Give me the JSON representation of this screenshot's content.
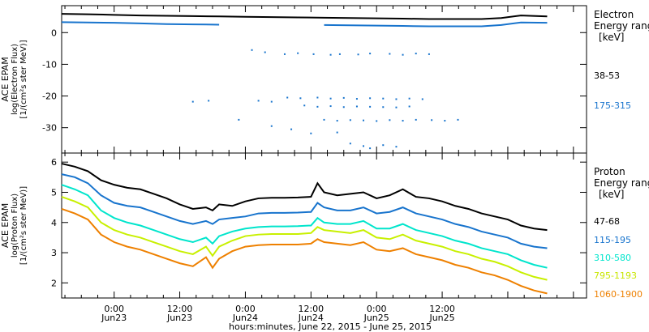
{
  "chart_data": [
    {
      "type": "scatter",
      "ylabel": [
        "ACE EPAM",
        "log(Electron Flux)",
        "[1/(cm²s ster MeV)]"
      ],
      "yticks": [
        0,
        -10,
        -20,
        -30
      ],
      "ylim": [
        -38,
        8.5
      ],
      "xlim": [
        -0.4,
        3.6
      ],
      "legend_title": [
        "Electron",
        "Energy range",
        "[keV]"
      ],
      "legend_placement": "right",
      "series": [
        {
          "name": "38-53",
          "color": "#000000",
          "x": [
            -0.4,
            -0.2,
            0.0,
            0.2,
            0.4,
            0.6,
            0.8,
            1.0,
            1.2,
            1.4,
            1.6,
            1.8,
            2.0,
            2.2,
            2.4,
            2.6,
            2.8,
            2.95,
            3.1,
            3.3
          ],
          "y": [
            5.9,
            5.8,
            5.6,
            5.4,
            5.3,
            5.2,
            5.1,
            5.0,
            4.9,
            4.8,
            4.7,
            4.6,
            4.5,
            4.4,
            4.3,
            4.3,
            4.3,
            4.6,
            5.4,
            5.1
          ]
        },
        {
          "name": "175-315",
          "color": "#1874cd",
          "x": [
            -0.4,
            -0.2,
            0.0,
            0.2,
            0.4,
            0.6,
            0.8,
            1.0,
            1.2,
            1.4,
            1.5,
            1.6,
            1.8,
            2.0,
            2.2,
            2.4,
            2.6,
            2.8,
            2.95,
            3.1,
            3.3
          ],
          "y": [
            3.3,
            3.2,
            3.1,
            2.9,
            2.7,
            2.6,
            2.5,
            2.4,
            2.4,
            2.4,
            2.4,
            2.4,
            2.3,
            2.2,
            2.1,
            2.0,
            2.0,
            2.0,
            2.4,
            3.2,
            3.1
          ],
          "gap": [
            0.94,
            1.54
          ],
          "scatter_points": [
            [
              1.05,
              -5.5
            ],
            [
              1.15,
              -6.2
            ],
            [
              1.3,
              -6.8
            ],
            [
              1.4,
              -6.5
            ],
            [
              1.52,
              -6.8
            ],
            [
              1.65,
              -7.0
            ],
            [
              1.72,
              -6.8
            ],
            [
              1.86,
              -6.9
            ],
            [
              1.95,
              -6.6
            ],
            [
              2.1,
              -6.7
            ],
            [
              2.2,
              -7.0
            ],
            [
              2.3,
              -6.6
            ],
            [
              2.4,
              -6.8
            ],
            [
              1.1,
              -21.5
            ],
            [
              1.2,
              -21.8
            ],
            [
              1.32,
              -20.5
            ],
            [
              1.42,
              -20.7
            ],
            [
              1.55,
              -20.5
            ],
            [
              1.65,
              -20.8
            ],
            [
              1.75,
              -20.6
            ],
            [
              1.85,
              -20.9
            ],
            [
              1.95,
              -20.7
            ],
            [
              2.05,
              -20.8
            ],
            [
              2.15,
              -21.0
            ],
            [
              2.25,
              -20.8
            ],
            [
              2.35,
              -21.0
            ],
            [
              1.45,
              -23.0
            ],
            [
              1.55,
              -23.4
            ],
            [
              1.65,
              -23.2
            ],
            [
              1.75,
              -23.5
            ],
            [
              1.85,
              -23.3
            ],
            [
              1.95,
              -23.4
            ],
            [
              2.05,
              -23.5
            ],
            [
              2.15,
              -23.6
            ],
            [
              2.25,
              -23.3
            ],
            [
              1.6,
              -27.5
            ],
            [
              1.7,
              -27.8
            ],
            [
              1.8,
              -27.6
            ],
            [
              1.9,
              -27.7
            ],
            [
              2.0,
              -27.9
            ],
            [
              2.1,
              -27.6
            ],
            [
              2.2,
              -27.8
            ],
            [
              2.3,
              -27.5
            ],
            [
              2.42,
              -27.6
            ],
            [
              2.52,
              -27.8
            ],
            [
              2.62,
              -27.5
            ],
            [
              1.2,
              -29.5
            ],
            [
              1.35,
              -30.5
            ],
            [
              1.5,
              -31.8
            ],
            [
              1.7,
              -31.5
            ],
            [
              1.8,
              -35.0
            ],
            [
              1.9,
              -35.8
            ],
            [
              1.95,
              -36.5
            ],
            [
              2.05,
              -35.5
            ],
            [
              2.15,
              -36.0
            ],
            [
              0.6,
              -21.8
            ],
            [
              0.72,
              -21.5
            ],
            [
              0.95,
              -27.5
            ]
          ]
        }
      ],
      "legend_entries": [
        {
          "label": "38-53",
          "color": "#000000"
        },
        {
          "label": "175-315",
          "color": "#1874cd"
        }
      ]
    },
    {
      "type": "line",
      "ylabel": [
        "ACE EPAM",
        "log(Proton Flux)",
        "[1/(cm²s ster MeV)]"
      ],
      "yticks": [
        2,
        3,
        4,
        5,
        6
      ],
      "ylim": [
        1.5,
        6.3
      ],
      "xlim": [
        -0.4,
        3.6
      ],
      "legend_title": [
        "Proton",
        "Energy range",
        "[keV]"
      ],
      "legend_placement": "right",
      "series": [
        {
          "name": "47-68",
          "color": "#000000",
          "x": [
            -0.4,
            -0.3,
            -0.2,
            -0.1,
            0.0,
            0.1,
            0.2,
            0.3,
            0.4,
            0.5,
            0.6,
            0.7,
            0.75,
            0.8,
            0.9,
            1.0,
            1.1,
            1.2,
            1.3,
            1.4,
            1.5,
            1.55,
            1.6,
            1.7,
            1.8,
            1.9,
            2.0,
            2.1,
            2.2,
            2.3,
            2.4,
            2.5,
            2.6,
            2.7,
            2.8,
            2.9,
            3.0,
            3.1,
            3.2,
            3.3
          ],
          "y": [
            5.95,
            5.85,
            5.7,
            5.4,
            5.25,
            5.15,
            5.1,
            4.95,
            4.8,
            4.6,
            4.45,
            4.5,
            4.4,
            4.6,
            4.55,
            4.7,
            4.8,
            4.82,
            4.82,
            4.83,
            4.85,
            5.3,
            5.0,
            4.9,
            4.95,
            5.0,
            4.8,
            4.9,
            5.1,
            4.85,
            4.8,
            4.7,
            4.55,
            4.45,
            4.3,
            4.2,
            4.1,
            3.9,
            3.8,
            3.75
          ]
        },
        {
          "name": "115-195",
          "color": "#1874cd",
          "x": [
            -0.4,
            -0.3,
            -0.2,
            -0.1,
            0.0,
            0.1,
            0.2,
            0.3,
            0.4,
            0.5,
            0.6,
            0.7,
            0.75,
            0.8,
            0.9,
            1.0,
            1.1,
            1.2,
            1.3,
            1.4,
            1.5,
            1.55,
            1.6,
            1.7,
            1.8,
            1.9,
            2.0,
            2.1,
            2.2,
            2.3,
            2.4,
            2.5,
            2.6,
            2.7,
            2.8,
            2.9,
            3.0,
            3.1,
            3.2,
            3.3
          ],
          "y": [
            5.6,
            5.5,
            5.3,
            4.9,
            4.65,
            4.55,
            4.5,
            4.35,
            4.2,
            4.05,
            3.95,
            4.05,
            3.95,
            4.1,
            4.15,
            4.2,
            4.3,
            4.32,
            4.32,
            4.33,
            4.35,
            4.65,
            4.5,
            4.4,
            4.4,
            4.5,
            4.3,
            4.35,
            4.5,
            4.3,
            4.2,
            4.1,
            3.95,
            3.85,
            3.7,
            3.6,
            3.5,
            3.3,
            3.2,
            3.15
          ]
        },
        {
          "name": "310-580",
          "color": "#00e5cc",
          "x": [
            -0.4,
            -0.3,
            -0.2,
            -0.1,
            0.0,
            0.1,
            0.2,
            0.3,
            0.4,
            0.5,
            0.6,
            0.7,
            0.75,
            0.8,
            0.9,
            1.0,
            1.1,
            1.2,
            1.3,
            1.4,
            1.5,
            1.55,
            1.6,
            1.7,
            1.8,
            1.9,
            2.0,
            2.1,
            2.2,
            2.3,
            2.4,
            2.5,
            2.6,
            2.7,
            2.8,
            2.9,
            3.0,
            3.1,
            3.2,
            3.3
          ],
          "y": [
            5.25,
            5.1,
            4.9,
            4.4,
            4.15,
            4.0,
            3.9,
            3.75,
            3.6,
            3.45,
            3.35,
            3.5,
            3.3,
            3.55,
            3.7,
            3.8,
            3.85,
            3.87,
            3.87,
            3.88,
            3.9,
            4.15,
            4.0,
            3.95,
            3.95,
            4.05,
            3.8,
            3.8,
            3.95,
            3.75,
            3.65,
            3.55,
            3.4,
            3.3,
            3.15,
            3.05,
            2.95,
            2.75,
            2.6,
            2.5
          ]
        },
        {
          "name": "795-1193",
          "color": "#c8f000",
          "x": [
            -0.4,
            -0.3,
            -0.2,
            -0.1,
            0.0,
            0.1,
            0.2,
            0.3,
            0.4,
            0.5,
            0.6,
            0.7,
            0.75,
            0.8,
            0.9,
            1.0,
            1.1,
            1.2,
            1.3,
            1.4,
            1.5,
            1.55,
            1.6,
            1.7,
            1.8,
            1.9,
            2.0,
            2.1,
            2.2,
            2.3,
            2.4,
            2.5,
            2.6,
            2.7,
            2.8,
            2.9,
            3.0,
            3.1,
            3.2,
            3.3
          ],
          "y": [
            4.85,
            4.7,
            4.5,
            4.0,
            3.75,
            3.6,
            3.5,
            3.35,
            3.2,
            3.05,
            2.95,
            3.2,
            2.9,
            3.2,
            3.4,
            3.55,
            3.6,
            3.62,
            3.62,
            3.62,
            3.65,
            3.85,
            3.75,
            3.7,
            3.65,
            3.75,
            3.5,
            3.45,
            3.6,
            3.4,
            3.3,
            3.2,
            3.05,
            2.95,
            2.8,
            2.7,
            2.55,
            2.35,
            2.2,
            2.1
          ]
        },
        {
          "name": "1060-1900",
          "color": "#ee8000",
          "x": [
            -0.4,
            -0.3,
            -0.2,
            -0.1,
            0.0,
            0.1,
            0.2,
            0.3,
            0.4,
            0.5,
            0.6,
            0.7,
            0.75,
            0.8,
            0.9,
            1.0,
            1.1,
            1.2,
            1.3,
            1.4,
            1.5,
            1.55,
            1.6,
            1.7,
            1.8,
            1.9,
            2.0,
            2.1,
            2.2,
            2.3,
            2.4,
            2.5,
            2.6,
            2.7,
            2.8,
            2.9,
            3.0,
            3.1,
            3.2,
            3.3
          ],
          "y": [
            4.45,
            4.3,
            4.1,
            3.6,
            3.35,
            3.2,
            3.1,
            2.95,
            2.8,
            2.65,
            2.55,
            2.85,
            2.5,
            2.8,
            3.05,
            3.2,
            3.25,
            3.27,
            3.27,
            3.27,
            3.3,
            3.45,
            3.35,
            3.3,
            3.25,
            3.35,
            3.1,
            3.05,
            3.15,
            2.95,
            2.85,
            2.75,
            2.6,
            2.5,
            2.35,
            2.25,
            2.1,
            1.9,
            1.75,
            1.65
          ]
        }
      ],
      "legend_entries": [
        {
          "label": "47-68",
          "color": "#000000"
        },
        {
          "label": "115-195",
          "color": "#1874cd"
        },
        {
          "label": "310-580",
          "color": "#00e5cc"
        },
        {
          "label": "795-1193",
          "color": "#c8f000"
        },
        {
          "label": "1060-1900",
          "color": "#ee8000"
        }
      ]
    }
  ],
  "xaxis": {
    "ticks": [
      {
        "x": 0,
        "time": "0:00",
        "day": "Jun23"
      },
      {
        "x": 0.5,
        "time": "12:00",
        "day": "Jun23"
      },
      {
        "x": 1,
        "time": "0:00",
        "day": "Jun24"
      },
      {
        "x": 1.5,
        "time": "12:00",
        "day": "Jun24"
      },
      {
        "x": 2,
        "time": "0:00",
        "day": "Jun25"
      },
      {
        "x": 2.5,
        "time": "12:00",
        "day": "Jun25"
      }
    ],
    "label": "hours:minutes, June 22, 2015 - June 25, 2015"
  }
}
